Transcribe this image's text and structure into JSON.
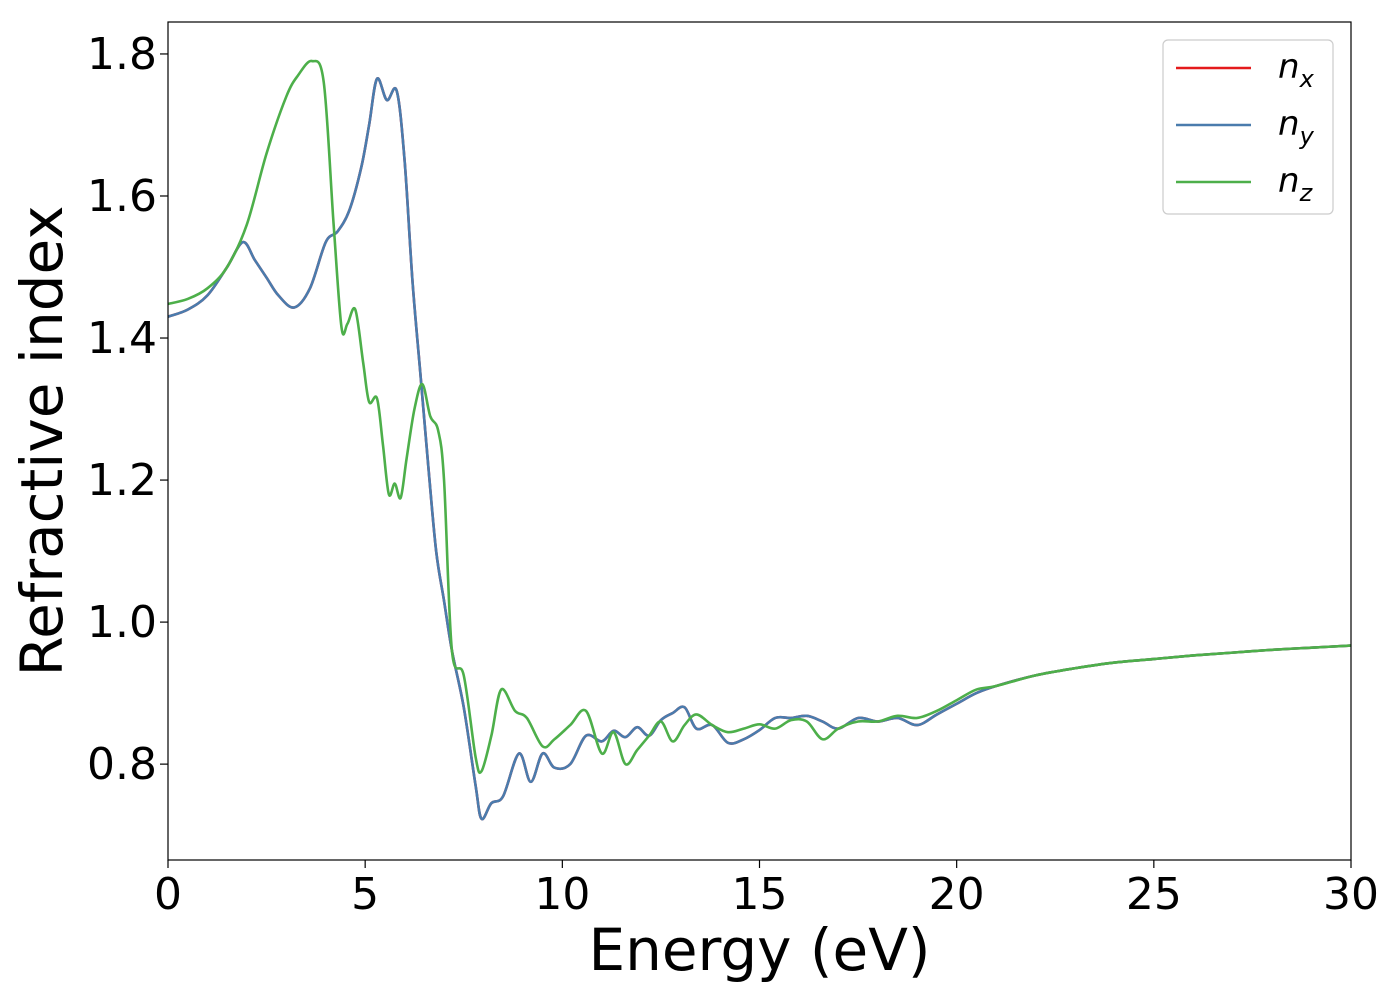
{
  "chart_data": {
    "type": "line",
    "xlabel": "Energy (eV)",
    "ylabel": "Refractive index",
    "xlim": [
      0,
      30
    ],
    "ylim": [
      0.665,
      1.845
    ],
    "x_ticks": [
      "0",
      "5",
      "10",
      "15",
      "20",
      "25",
      "30"
    ],
    "y_ticks": [
      "0.8",
      "1.0",
      "1.2",
      "1.4",
      "1.6",
      "1.8"
    ],
    "grid": false,
    "legend_position": "top-right",
    "series": [
      {
        "name": "n_x",
        "label_base": "n",
        "label_sub": "x",
        "color": "#e41a1c",
        "x": [
          0,
          0.5,
          1.0,
          1.5,
          1.9,
          2.2,
          2.5,
          2.8,
          3.2,
          3.6,
          4.0,
          4.3,
          4.6,
          4.9,
          5.1,
          5.3,
          5.55,
          5.8,
          6.0,
          6.2,
          6.4,
          6.6,
          6.8,
          7.0,
          7.2,
          7.5,
          7.8,
          7.95,
          8.2,
          8.5,
          8.9,
          9.2,
          9.5,
          9.8,
          10.2,
          10.6,
          11.0,
          11.3,
          11.6,
          11.9,
          12.2,
          12.5,
          12.8,
          13.1,
          13.4,
          13.8,
          14.2,
          14.6,
          15.0,
          15.4,
          15.8,
          16.2,
          16.6,
          17.0,
          17.5,
          18.0,
          18.5,
          19.0,
          19.5,
          20.0,
          20.5,
          21.0,
          22.0,
          23.0,
          24.0,
          25.0,
          26.0,
          27.0,
          28.0,
          29.0,
          30.0
        ],
        "y": [
          1.43,
          1.44,
          1.46,
          1.5,
          1.535,
          1.51,
          1.485,
          1.46,
          1.443,
          1.47,
          1.535,
          1.55,
          1.58,
          1.64,
          1.7,
          1.765,
          1.735,
          1.748,
          1.65,
          1.48,
          1.35,
          1.22,
          1.1,
          1.03,
          0.96,
          0.88,
          0.77,
          0.723,
          0.745,
          0.755,
          0.815,
          0.775,
          0.815,
          0.795,
          0.8,
          0.84,
          0.832,
          0.847,
          0.838,
          0.852,
          0.84,
          0.862,
          0.872,
          0.88,
          0.85,
          0.855,
          0.83,
          0.835,
          0.848,
          0.865,
          0.865,
          0.868,
          0.86,
          0.85,
          0.865,
          0.86,
          0.865,
          0.855,
          0.87,
          0.885,
          0.9,
          0.91,
          0.925,
          0.935,
          0.943,
          0.948,
          0.953,
          0.957,
          0.961,
          0.964,
          0.967
        ]
      },
      {
        "name": "n_y",
        "label_base": "n",
        "label_sub": "y",
        "color": "#4a7cad",
        "x": [
          0,
          0.5,
          1.0,
          1.5,
          1.9,
          2.2,
          2.5,
          2.8,
          3.2,
          3.6,
          4.0,
          4.3,
          4.6,
          4.9,
          5.1,
          5.3,
          5.55,
          5.8,
          6.0,
          6.2,
          6.4,
          6.6,
          6.8,
          7.0,
          7.2,
          7.5,
          7.8,
          7.95,
          8.2,
          8.5,
          8.9,
          9.2,
          9.5,
          9.8,
          10.2,
          10.6,
          11.0,
          11.3,
          11.6,
          11.9,
          12.2,
          12.5,
          12.8,
          13.1,
          13.4,
          13.8,
          14.2,
          14.6,
          15.0,
          15.4,
          15.8,
          16.2,
          16.6,
          17.0,
          17.5,
          18.0,
          18.5,
          19.0,
          19.5,
          20.0,
          20.5,
          21.0,
          22.0,
          23.0,
          24.0,
          25.0,
          26.0,
          27.0,
          28.0,
          29.0,
          30.0
        ],
        "y": [
          1.43,
          1.44,
          1.46,
          1.5,
          1.535,
          1.51,
          1.485,
          1.46,
          1.443,
          1.47,
          1.535,
          1.55,
          1.58,
          1.64,
          1.7,
          1.765,
          1.735,
          1.748,
          1.65,
          1.48,
          1.35,
          1.22,
          1.1,
          1.03,
          0.96,
          0.88,
          0.77,
          0.723,
          0.745,
          0.755,
          0.815,
          0.775,
          0.815,
          0.795,
          0.8,
          0.84,
          0.832,
          0.847,
          0.838,
          0.852,
          0.84,
          0.862,
          0.872,
          0.88,
          0.85,
          0.855,
          0.83,
          0.835,
          0.848,
          0.865,
          0.865,
          0.868,
          0.86,
          0.85,
          0.865,
          0.86,
          0.865,
          0.855,
          0.87,
          0.885,
          0.9,
          0.91,
          0.925,
          0.935,
          0.943,
          0.948,
          0.953,
          0.957,
          0.961,
          0.964,
          0.967
        ]
      },
      {
        "name": "n_z",
        "label_base": "n",
        "label_sub": "z",
        "color": "#4daf4a",
        "x": [
          0,
          0.5,
          1.0,
          1.5,
          2.0,
          2.5,
          3.0,
          3.3,
          3.65,
          3.95,
          4.2,
          4.4,
          4.55,
          4.75,
          4.95,
          5.1,
          5.3,
          5.45,
          5.6,
          5.75,
          5.9,
          6.05,
          6.25,
          6.45,
          6.65,
          6.85,
          7.0,
          7.2,
          7.5,
          7.8,
          7.95,
          8.2,
          8.45,
          8.8,
          9.1,
          9.5,
          9.8,
          10.2,
          10.6,
          11.0,
          11.3,
          11.6,
          11.9,
          12.2,
          12.5,
          12.8,
          13.1,
          13.4,
          13.8,
          14.2,
          14.6,
          15.0,
          15.4,
          15.8,
          16.2,
          16.6,
          17.0,
          17.5,
          18.0,
          18.5,
          19.0,
          19.5,
          20.0,
          20.5,
          21.0,
          22.0,
          23.0,
          24.0,
          25.0,
          26.0,
          27.0,
          28.0,
          29.0,
          30.0
        ],
        "y": [
          1.448,
          1.455,
          1.47,
          1.5,
          1.56,
          1.66,
          1.74,
          1.77,
          1.79,
          1.76,
          1.56,
          1.415,
          1.42,
          1.44,
          1.365,
          1.31,
          1.315,
          1.25,
          1.18,
          1.195,
          1.175,
          1.23,
          1.3,
          1.335,
          1.29,
          1.27,
          1.2,
          0.96,
          0.925,
          0.81,
          0.79,
          0.84,
          0.905,
          0.875,
          0.865,
          0.825,
          0.835,
          0.855,
          0.875,
          0.815,
          0.845,
          0.8,
          0.82,
          0.84,
          0.86,
          0.832,
          0.855,
          0.87,
          0.855,
          0.845,
          0.85,
          0.856,
          0.85,
          0.862,
          0.86,
          0.835,
          0.85,
          0.86,
          0.86,
          0.868,
          0.865,
          0.875,
          0.89,
          0.905,
          0.91,
          0.925,
          0.935,
          0.943,
          0.948,
          0.953,
          0.957,
          0.961,
          0.964,
          0.967
        ]
      }
    ]
  }
}
